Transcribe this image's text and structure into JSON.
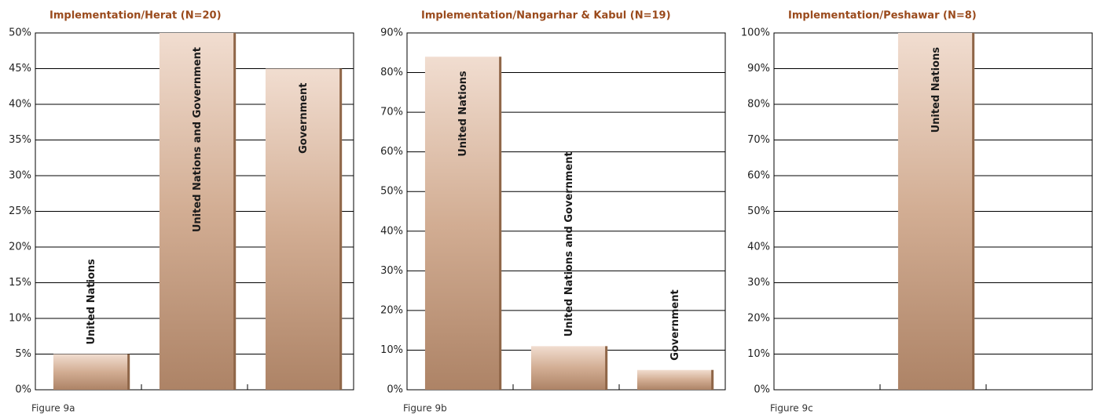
{
  "chart_data": [
    {
      "type": "bar",
      "title": "Implementation/Herat (N=20)",
      "caption": "Figure 9a",
      "categories": [
        "United Nations",
        "United Nations and Government",
        "Government"
      ],
      "values": [
        5,
        50,
        45
      ],
      "color": "#b08466",
      "ylim": [
        0,
        50
      ],
      "yticks": [
        {
          "value": 0,
          "label": "0%"
        },
        {
          "value": 5,
          "label": "5%"
        },
        {
          "value": 10,
          "label": "10%"
        },
        {
          "value": 15,
          "label": "15%"
        },
        {
          "value": 20,
          "label": "20%"
        },
        {
          "value": 25,
          "label": "25%"
        },
        {
          "value": 30,
          "label": "30%"
        },
        {
          "value": 35,
          "label": "35%"
        },
        {
          "value": 40,
          "label": "40%"
        },
        {
          "value": 45,
          "label": "45%"
        },
        {
          "value": 50,
          "label": "50%"
        }
      ],
      "grid": true
    },
    {
      "type": "bar",
      "title": "Implementation/Nangarhar & Kabul (N=19)",
      "caption": "Figure 9b",
      "categories": [
        "United Nations",
        "United Nations and Government",
        "Government"
      ],
      "values": [
        84,
        11,
        5
      ],
      "color": "#b08466",
      "ylim": [
        0,
        90
      ],
      "yticks": [
        {
          "value": 0,
          "label": "0%"
        },
        {
          "value": 10,
          "label": "10%"
        },
        {
          "value": 20,
          "label": "20%"
        },
        {
          "value": 30,
          "label": "30%"
        },
        {
          "value": 40,
          "label": "40%"
        },
        {
          "value": 50,
          "label": "50%"
        },
        {
          "value": 60,
          "label": "60%"
        },
        {
          "value": 70,
          "label": "70%"
        },
        {
          "value": 80,
          "label": "80%"
        },
        {
          "value": 90,
          "label": "90%"
        }
      ],
      "grid": true
    },
    {
      "type": "bar",
      "title": "Implementation/Peshawar (N=8)",
      "caption": "Figure 9c",
      "categories": [
        null,
        "United Nations",
        null
      ],
      "values": [
        null,
        100,
        null
      ],
      "color": "#b08466",
      "ylim": [
        0,
        100
      ],
      "yticks": [
        {
          "value": 0,
          "label": "0%"
        },
        {
          "value": 10,
          "label": "10%"
        },
        {
          "value": 20,
          "label": "20%"
        },
        {
          "value": 30,
          "label": "30%"
        },
        {
          "value": 40,
          "label": "40%"
        },
        {
          "value": 50,
          "label": "50%"
        },
        {
          "value": 60,
          "label": "60%"
        },
        {
          "value": 70,
          "label": "70%"
        },
        {
          "value": 80,
          "label": "80%"
        },
        {
          "value": 90,
          "label": "90%"
        },
        {
          "value": 100,
          "label": "100%"
        }
      ],
      "grid": true
    }
  ]
}
